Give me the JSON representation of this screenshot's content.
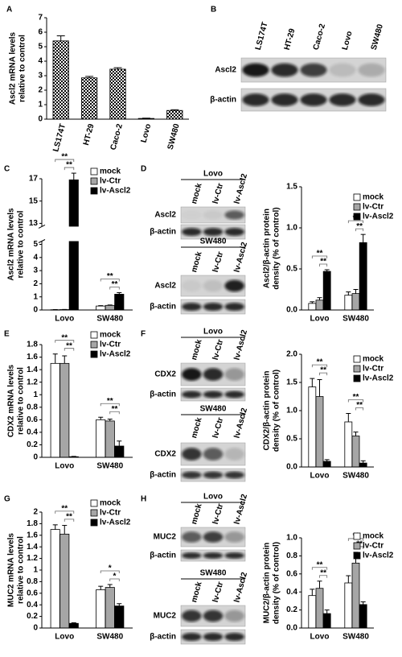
{
  "panels": [
    "A",
    "B",
    "C",
    "D",
    "E",
    "F",
    "G",
    "H"
  ],
  "chart_data": [
    {
      "type": "bar",
      "ylabel": [
        "Ascl2 mRNA levels",
        "relative to control"
      ],
      "categories": [
        "LS174T",
        "HT-29",
        "Caco-2",
        "Lovo",
        "SW480"
      ],
      "values": [
        5.4,
        2.85,
        3.45,
        0.05,
        0.6
      ],
      "errors": [
        0.35,
        0.1,
        0.1,
        0.02,
        0.05
      ],
      "pattern": "checker",
      "color": "#000000",
      "ylim": [
        0,
        7
      ],
      "yticks": [
        0,
        1,
        2,
        3,
        4,
        5,
        6,
        7
      ]
    },
    {
      "type": "grouped_bar",
      "ylabel": [
        "Ascl2 mRNA levels",
        "relative to control"
      ],
      "categories": [
        "Lovo",
        "SW480"
      ],
      "series": [
        {
          "name": "mock",
          "color": "#ffffff",
          "values": [
            0.02,
            0.3
          ],
          "errors": [
            0.01,
            0.03
          ]
        },
        {
          "name": "lv-Ctr",
          "color": "#a6a6a6",
          "values": [
            0.03,
            0.35
          ],
          "errors": [
            0.01,
            0.03
          ]
        },
        {
          "name": "lv-Ascl2",
          "color": "#000000",
          "values": [
            16.9,
            1.2
          ],
          "errors": [
            0.6,
            0.12
          ]
        }
      ],
      "significance": [
        [
          "**",
          "**"
        ],
        [
          "**",
          "**"
        ]
      ],
      "axis_break": true,
      "legend": "upper right",
      "ylim": [
        0,
        17
      ],
      "yticks": [
        0,
        1,
        2,
        3,
        4,
        5,
        13,
        15,
        17
      ]
    },
    {
      "type": "grouped_bar",
      "ylabel": [
        "Ascl2/β-actin protein",
        "density (% of control)"
      ],
      "categories": [
        "Lovo",
        "SW480"
      ],
      "series": [
        {
          "name": "mock",
          "color": "#ffffff",
          "values": [
            0.08,
            0.18
          ],
          "errors": [
            0.02,
            0.04
          ]
        },
        {
          "name": "lv-Ctr",
          "color": "#a6a6a6",
          "values": [
            0.12,
            0.2
          ],
          "errors": [
            0.03,
            0.05
          ]
        },
        {
          "name": "lv-Ascl2",
          "color": "#000000",
          "values": [
            0.47,
            0.82
          ],
          "errors": [
            0.02,
            0.1
          ]
        }
      ],
      "significance": [
        [
          "**",
          "**"
        ],
        [
          "**",
          "**"
        ]
      ],
      "legend": "upper right",
      "ylim": [
        0,
        1.5
      ],
      "yticks": [
        {
          "value": 0,
          "label": "0.0"
        },
        0.5,
        {
          "value": 1,
          "label": "1.0"
        },
        1.5
      ]
    },
    {
      "type": "grouped_bar",
      "ylabel": [
        "CDX2 mRNA levels",
        "relative to control"
      ],
      "categories": [
        "Lovo",
        "SW480"
      ],
      "series": [
        {
          "name": "mock",
          "color": "#ffffff",
          "values": [
            1.5,
            0.6
          ],
          "errors": [
            0.15,
            0.04
          ]
        },
        {
          "name": "lv-Ctr",
          "color": "#a6a6a6",
          "values": [
            1.5,
            0.58
          ],
          "errors": [
            0.12,
            0.03
          ]
        },
        {
          "name": "lv-Ascl2",
          "color": "#000000",
          "values": [
            0.01,
            0.18
          ],
          "errors": [
            0.005,
            0.08
          ]
        }
      ],
      "significance": [
        [
          "**",
          "**"
        ],
        [
          "**",
          "**"
        ]
      ],
      "legend": "upper right",
      "ylim": [
        0,
        1.8
      ],
      "yticks": [
        0,
        0.2,
        0.4,
        0.6,
        0.8,
        1,
        1.2,
        1.4,
        1.6,
        1.8
      ]
    },
    {
      "type": "grouped_bar",
      "ylabel": [
        "CDX2/β-actin protein",
        "density (% of control)"
      ],
      "categories": [
        "Lovo",
        "SW480"
      ],
      "series": [
        {
          "name": "mock",
          "color": "#ffffff",
          "values": [
            1.42,
            0.8
          ],
          "errors": [
            0.15,
            0.15
          ]
        },
        {
          "name": "lv-Ctr",
          "color": "#a6a6a6",
          "values": [
            1.25,
            0.55
          ],
          "errors": [
            0.3,
            0.07
          ]
        },
        {
          "name": "lv-Ascl2",
          "color": "#000000",
          "values": [
            0.1,
            0.07
          ],
          "errors": [
            0.03,
            0.04
          ]
        }
      ],
      "significance": [
        [
          "**",
          "**"
        ],
        [
          "**",
          "**"
        ]
      ],
      "legend": "upper right",
      "ylim": [
        0,
        2
      ],
      "yticks": [
        {
          "value": 0,
          "label": "0.0"
        },
        0.5,
        {
          "value": 1,
          "label": "1.0"
        },
        1.5,
        {
          "value": 2,
          "label": "2.0"
        }
      ]
    },
    {
      "type": "grouped_bar",
      "ylabel": [
        "MUC2 mRNA levels",
        "relative to control"
      ],
      "categories": [
        "Lovo",
        "SW480"
      ],
      "series": [
        {
          "name": "mock",
          "color": "#ffffff",
          "values": [
            1.7,
            0.66
          ],
          "errors": [
            0.08,
            0.06
          ]
        },
        {
          "name": "lv-Ctr",
          "color": "#a6a6a6",
          "values": [
            1.62,
            0.7
          ],
          "errors": [
            0.15,
            0.05
          ]
        },
        {
          "name": "lv-Ascl2",
          "color": "#000000",
          "values": [
            0.08,
            0.38
          ],
          "errors": [
            0.01,
            0.04
          ]
        }
      ],
      "significance": [
        [
          "**",
          "**"
        ],
        [
          "*",
          "*"
        ]
      ],
      "legend": "upper right",
      "ylim": [
        0,
        2
      ],
      "yticks": [
        0,
        0.2,
        0.4,
        0.6,
        0.8,
        1,
        1.2,
        1.4,
        1.6,
        1.8,
        2
      ]
    },
    {
      "type": "grouped_bar",
      "ylabel": [
        "MUC2/β-actin protein",
        "density (% of control)"
      ],
      "categories": [
        "Lovo",
        "SW480"
      ],
      "series": [
        {
          "name": "mock",
          "color": "#ffffff",
          "values": [
            0.36,
            0.5
          ],
          "errors": [
            0.07,
            0.08
          ]
        },
        {
          "name": "lv-Ctr",
          "color": "#a6a6a6",
          "values": [
            0.44,
            0.72
          ],
          "errors": [
            0.08,
            0.12
          ]
        },
        {
          "name": "lv-Ascl2",
          "color": "#000000",
          "values": [
            0.16,
            0.26
          ],
          "errors": [
            0.04,
            0.03
          ]
        }
      ],
      "significance": [
        [
          "**",
          "**"
        ],
        [
          "**",
          "**"
        ]
      ],
      "legend": "upper right",
      "ylim": [
        0,
        1
      ],
      "yticks": [
        {
          "value": 0,
          "label": "0.0"
        },
        0.2,
        0.4,
        0.6,
        0.8,
        {
          "value": 1,
          "label": "1.0"
        }
      ]
    }
  ],
  "blots": [
    {
      "lanes": [
        "LS174T",
        "HT-29",
        "Caco-2",
        "Lovo",
        "SW480"
      ],
      "rows": [
        "Ascl2",
        "β-actin"
      ]
    },
    {
      "title": "Lovo",
      "lanes": [
        "mock",
        "lv-Ctr",
        "lv-Ascl2"
      ],
      "rows": [
        "Ascl2",
        "β-actin"
      ]
    },
    {
      "title": "SW480",
      "lanes": [
        "mock",
        "lv-Ctr",
        "lv-Ascl2"
      ],
      "rows": [
        "Ascl2",
        "β-actin"
      ]
    },
    {
      "title": "Lovo",
      "lanes": [
        "mock",
        "lv-Ctr",
        "lv-Ascl2"
      ],
      "rows": [
        "CDX2",
        "β-actin"
      ]
    },
    {
      "title": "SW480",
      "lanes": [
        "mock",
        "lv-Ctr",
        "lv-Ascl2"
      ],
      "rows": [
        "CDX2",
        "β-actin"
      ]
    },
    {
      "title": "Lovo",
      "lanes": [
        "mock",
        "lv-Ctr",
        "lv-Ascl2"
      ],
      "rows": [
        "MUC2",
        "β-actin"
      ]
    },
    {
      "title": "SW480",
      "lanes": [
        "mock",
        "lv-Ctr",
        "lv-Ascl2"
      ],
      "rows": [
        "MUC2",
        "β-actin"
      ]
    }
  ]
}
